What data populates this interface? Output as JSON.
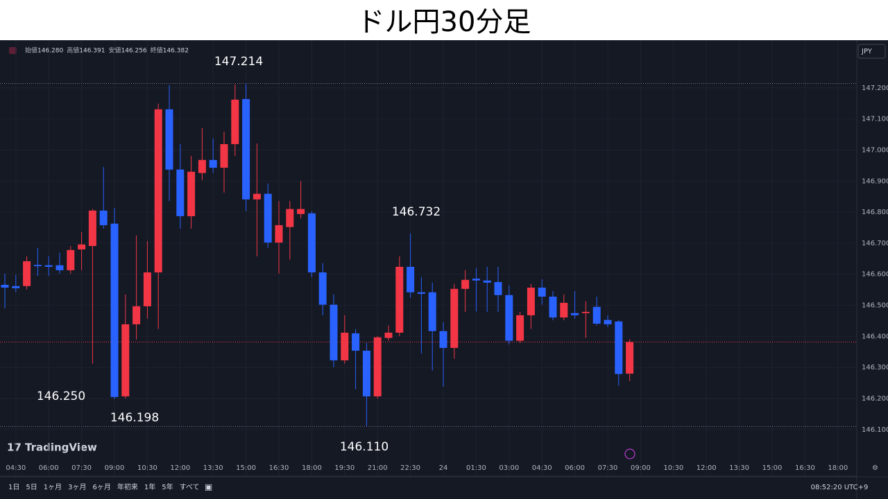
{
  "header": {
    "title": "ドル円30分足"
  },
  "toolbar": {
    "ohlc": [
      {
        "name": "始値",
        "value": "146.280"
      },
      {
        "name": "高値",
        "value": "146.391"
      },
      {
        "name": "安値",
        "value": "146.256"
      },
      {
        "name": "終値",
        "value": "146.382"
      }
    ],
    "currency": "JPY",
    "brand": "TradingView",
    "ranges": [
      "1日",
      "5日",
      "1ヶ月",
      "3ヶ月",
      "6ヶ月",
      "年初来",
      "1年",
      "5年",
      "すべて"
    ],
    "clock": "08:52:20 UTC+9"
  },
  "chart_data": {
    "type": "candlestick",
    "up_color": "#f23645",
    "down_color": "#2962ff",
    "ylim": [
      146.006,
      147.349
    ],
    "yticks": [
      {
        "value": 146.1,
        "label": "146.100"
      },
      {
        "value": 146.2,
        "label": "146.200"
      },
      {
        "value": 146.3,
        "label": "146.300"
      },
      {
        "value": 146.4,
        "label": "146.400"
      },
      {
        "value": 146.5,
        "label": "146.500"
      },
      {
        "value": 146.6,
        "label": "146.600"
      },
      {
        "value": 146.7,
        "label": "146.700"
      },
      {
        "value": 146.8,
        "label": "146.800"
      },
      {
        "value": 146.9,
        "label": "146.900"
      },
      {
        "value": 147.0,
        "label": "147.000"
      },
      {
        "value": 147.1,
        "label": "147.100"
      },
      {
        "value": 147.2,
        "label": "147.200"
      }
    ],
    "xtick_labels": [
      "04:30",
      "06:00",
      "07:30",
      "09:00",
      "10:30",
      "12:00",
      "13:30",
      "15:00",
      "16:30",
      "18:00",
      "19:30",
      "21:00",
      "22:30",
      "24",
      "01:30",
      "03:00",
      "04:30",
      "06:00",
      "07:30",
      "09:00",
      "10:30",
      "12:00",
      "13:30",
      "15:00",
      "16:30",
      "18:00"
    ],
    "open": [
      146.566,
      146.562,
      146.562,
      146.63,
      146.629,
      146.629,
      146.613,
      146.68,
      146.691,
      146.805,
      146.763,
      146.207,
      146.439,
      146.497,
      146.606,
      147.131,
      146.937,
      146.787,
      146.926,
      146.968,
      146.943,
      147.019,
      147.164,
      146.841,
      146.859,
      146.702,
      146.752,
      146.794,
      146.796,
      146.606,
      146.502,
      146.323,
      146.41,
      146.354,
      146.207,
      146.395,
      146.412,
      146.624,
      146.542,
      146.542,
      146.417,
      146.363,
      146.553,
      146.586,
      146.58,
      146.575,
      146.533,
      146.386,
      146.468,
      146.557,
      146.528,
      146.461,
      146.475,
      146.475,
      146.495,
      146.453,
      146.448,
      146.28
    ],
    "high": [
      146.602,
      146.598,
      146.658,
      146.685,
      146.658,
      146.669,
      146.691,
      146.736,
      146.81,
      146.946,
      146.814,
      146.535,
      146.725,
      146.707,
      147.149,
      147.209,
      147.019,
      146.981,
      147.071,
      147.037,
      147.059,
      147.211,
      147.214,
      147.021,
      146.892,
      146.836,
      146.836,
      146.9,
      146.803,
      146.636,
      146.535,
      146.468,
      146.424,
      146.379,
      146.401,
      146.435,
      146.658,
      146.732,
      146.591,
      146.573,
      146.446,
      146.569,
      146.613,
      146.62,
      146.624,
      146.624,
      146.564,
      146.479,
      146.569,
      146.584,
      146.546,
      146.535,
      146.546,
      146.513,
      146.528,
      146.468,
      146.452,
      146.391
    ],
    "low": [
      146.49,
      146.542,
      146.551,
      146.595,
      146.595,
      146.602,
      146.602,
      146.613,
      146.312,
      146.747,
      146.198,
      146.2,
      146.39,
      146.457,
      146.424,
      146.836,
      146.747,
      146.747,
      146.903,
      146.926,
      146.863,
      146.981,
      146.803,
      146.658,
      146.685,
      146.602,
      146.647,
      146.78,
      146.591,
      146.468,
      146.301,
      146.312,
      146.23,
      146.11,
      146.2,
      146.386,
      146.401,
      146.524,
      146.345,
      146.29,
      146.238,
      146.328,
      146.479,
      146.48,
      146.479,
      146.479,
      146.374,
      146.379,
      146.424,
      146.502,
      146.452,
      146.452,
      146.457,
      146.395,
      146.435,
      146.43,
      146.241,
      146.256
    ],
    "close": [
      146.557,
      146.555,
      146.642,
      146.626,
      146.624,
      146.613,
      146.678,
      146.696,
      146.805,
      146.758,
      146.205,
      146.439,
      146.497,
      146.606,
      147.131,
      146.937,
      146.787,
      146.93,
      146.968,
      146.943,
      147.019,
      147.162,
      146.841,
      146.859,
      146.702,
      146.758,
      146.81,
      146.81,
      146.606,
      146.502,
      146.323,
      146.412,
      146.354,
      146.207,
      146.397,
      146.412,
      146.624,
      146.542,
      146.537,
      146.417,
      146.363,
      146.553,
      146.582,
      146.58,
      146.573,
      146.533,
      146.386,
      146.468,
      146.557,
      146.528,
      146.461,
      146.508,
      146.468,
      146.479,
      146.441,
      146.439,
      146.279,
      146.382
    ],
    "annotations": [
      "147.214",
      "146.732",
      "146.250",
      "146.198",
      "146.110"
    ]
  }
}
